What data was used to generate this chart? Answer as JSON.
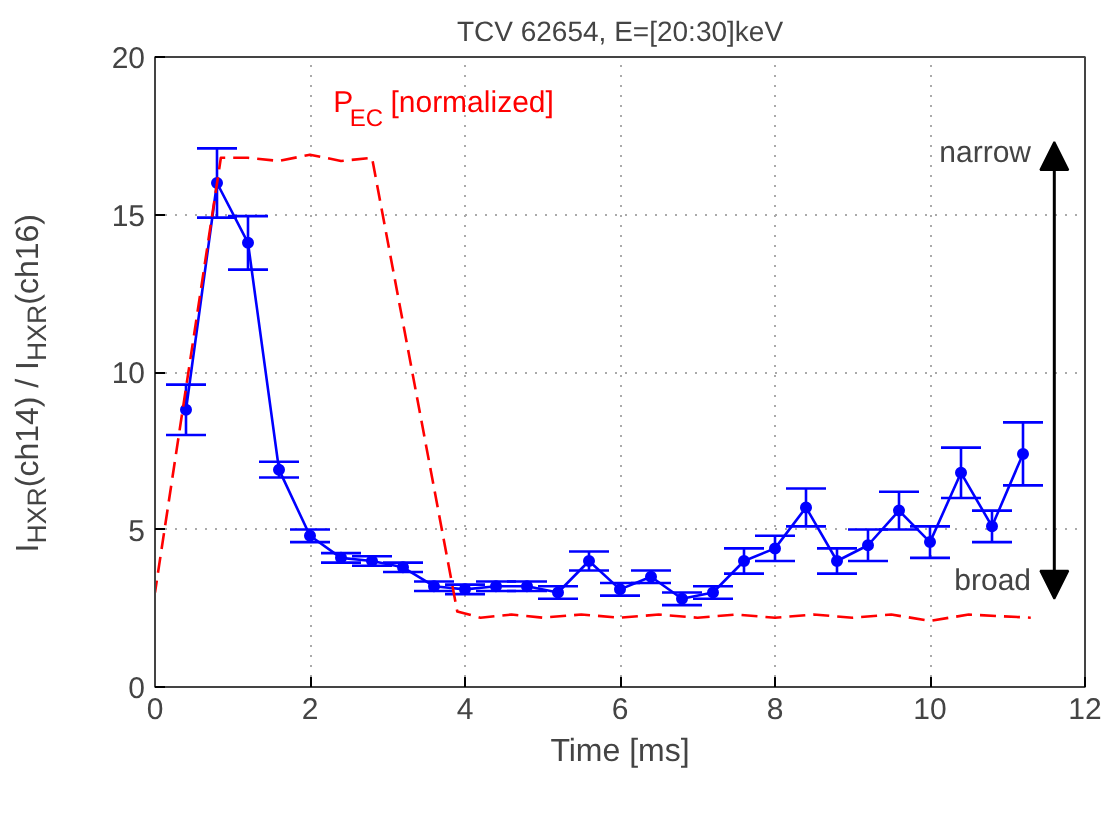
{
  "chart_data": {
    "type": "line",
    "title": "TCV 62654, E=[20:30]keV",
    "xlabel": "Time [ms]",
    "ylabel": "I$_{HXR}$(ch14) / I$_{HXR}$(ch16)",
    "xlim": [
      0,
      12
    ],
    "ylim": [
      0,
      20
    ],
    "xticks": [
      0,
      2,
      4,
      6,
      8,
      10,
      12
    ],
    "yticks": [
      0,
      5,
      10,
      15,
      20
    ],
    "grid": true,
    "series": [
      {
        "color": "#0000ff",
        "marker": "circle",
        "line_style": "solid",
        "x": [
          0.4,
          0.8,
          1.2,
          1.6,
          2.0,
          2.4,
          2.8,
          3.2,
          3.6,
          4.0,
          4.4,
          4.8,
          5.2,
          5.6,
          6.0,
          6.4,
          6.8,
          7.2,
          7.6,
          8.0,
          8.4,
          8.8,
          9.2,
          9.6,
          10.0,
          10.4,
          10.8,
          11.2
        ],
        "values": [
          8.8,
          16.0,
          14.1,
          6.9,
          4.8,
          4.1,
          4.0,
          3.8,
          3.2,
          3.1,
          3.2,
          3.2,
          3.0,
          4.0,
          3.1,
          3.5,
          2.8,
          3.0,
          4.0,
          4.4,
          5.7,
          4.0,
          4.5,
          5.6,
          4.6,
          6.8,
          5.1,
          7.4
        ],
        "errors": [
          0.8,
          1.1,
          0.85,
          0.25,
          0.2,
          0.15,
          0.15,
          0.15,
          0.15,
          0.15,
          0.15,
          0.15,
          0.2,
          0.3,
          0.2,
          0.2,
          0.2,
          0.2,
          0.4,
          0.4,
          0.6,
          0.4,
          0.5,
          0.6,
          0.5,
          0.8,
          0.5,
          1.0
        ]
      },
      {
        "name": "P$_{EC}$ [normalized]",
        "color": "#ff0000",
        "marker": "none",
        "line_style": "dashed",
        "x": [
          0.0,
          0.85,
          1.2,
          1.6,
          2.0,
          2.4,
          2.8,
          3.9,
          4.2,
          4.6,
          5.0,
          5.5,
          6.0,
          6.5,
          7.0,
          7.5,
          8.0,
          8.5,
          9.0,
          9.5,
          10.0,
          10.5,
          11.3
        ],
        "values": [
          3.0,
          16.8,
          16.8,
          16.7,
          16.9,
          16.7,
          16.8,
          2.4,
          2.2,
          2.3,
          2.2,
          2.3,
          2.2,
          2.3,
          2.2,
          2.3,
          2.2,
          2.3,
          2.2,
          2.3,
          2.1,
          2.3,
          2.2
        ]
      }
    ],
    "annotations": [
      "narrow",
      "broad"
    ]
  }
}
